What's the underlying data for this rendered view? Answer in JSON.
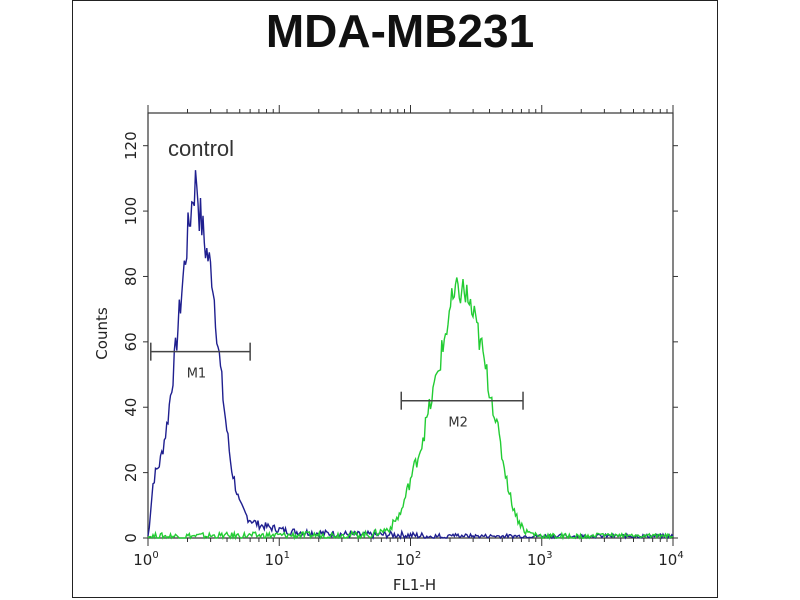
{
  "chart_data": {
    "type": "line",
    "title": "MDA-MB231",
    "xlabel": "FL1-H",
    "ylabel": "Counts",
    "x_scale": "log",
    "xlim": [
      1,
      10000
    ],
    "ylim": [
      0,
      130
    ],
    "y_ticks": [
      0,
      20,
      40,
      60,
      80,
      100,
      120
    ],
    "x_ticks": [
      {
        "base": "10",
        "exp": "0"
      },
      {
        "base": "10",
        "exp": "1"
      },
      {
        "base": "10",
        "exp": "2"
      },
      {
        "base": "10",
        "exp": "3"
      },
      {
        "base": "10",
        "exp": "4"
      }
    ],
    "annotation": "control",
    "series": [
      {
        "color": "#1f1f8f",
        "x": [
          1.0,
          1.1,
          1.25,
          1.4,
          1.6,
          1.8,
          2.0,
          2.2,
          2.35,
          2.45,
          2.55,
          2.7,
          2.9,
          3.1,
          3.4,
          3.8,
          4.3,
          5.0,
          5.8,
          7.0,
          9.0,
          12,
          20,
          40,
          80,
          150,
          300,
          1000,
          10000
        ],
        "y": [
          0,
          18,
          24,
          35,
          55,
          75,
          92,
          105,
          110,
          100,
          97,
          90,
          85,
          80,
          60,
          40,
          22,
          10,
          6,
          4,
          3,
          2,
          1.5,
          1,
          1,
          0.5,
          0,
          0,
          0
        ]
      },
      {
        "color": "#22cc33",
        "x": [
          1.0,
          50,
          70,
          85,
          100,
          120,
          140,
          160,
          180,
          200,
          220,
          240,
          260,
          280,
          300,
          340,
          380,
          430,
          500,
          580,
          650,
          750,
          1000,
          10000
        ],
        "y": [
          0.5,
          1,
          3,
          8,
          18,
          28,
          40,
          50,
          60,
          70,
          74,
          76,
          75,
          72,
          68,
          60,
          50,
          40,
          25,
          12,
          6,
          2,
          0.5,
          0
        ]
      }
    ],
    "markers": [
      {
        "label": "M1",
        "x_start": 1.05,
        "x_end": 6.0,
        "y": 57
      },
      {
        "label": "M2",
        "x_start": 85,
        "x_end": 720,
        "y": 42
      }
    ]
  }
}
